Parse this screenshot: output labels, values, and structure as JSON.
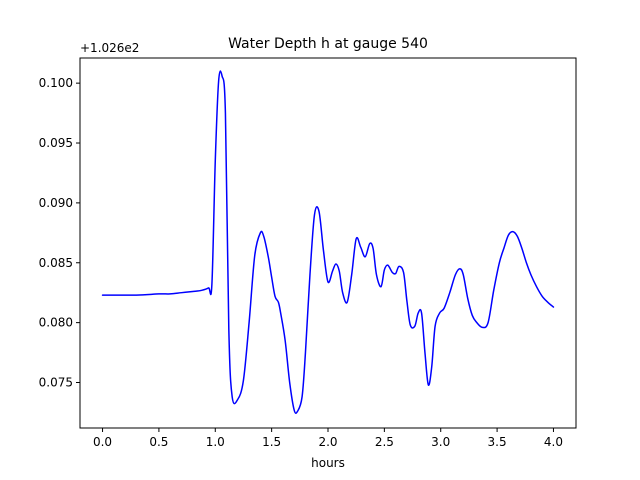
{
  "chart_data": {
    "type": "line",
    "title": "Water Depth h at gauge 540",
    "xlabel": "hours",
    "ylabel": "",
    "y_offset_text": "+1.026e2",
    "xlim": [
      -0.2,
      4.2
    ],
    "ylim": [
      0.0712,
      0.1021
    ],
    "x_ticks": [
      0.0,
      0.5,
      1.0,
      1.5,
      2.0,
      2.5,
      3.0,
      3.5,
      4.0
    ],
    "x_tick_labels": [
      "0.0",
      "0.5",
      "1.0",
      "1.5",
      "2.0",
      "2.5",
      "3.0",
      "3.5",
      "4.0"
    ],
    "y_ticks": [
      0.075,
      0.08,
      0.085,
      0.09,
      0.095,
      0.1
    ],
    "y_tick_labels": [
      "0.075",
      "0.080",
      "0.085",
      "0.090",
      "0.095",
      "0.100"
    ],
    "grid": false,
    "series": [
      {
        "color": "#0000ff",
        "x": [
          0.0,
          0.3,
          0.5,
          0.6,
          0.7,
          0.8,
          0.88,
          0.94,
          0.97,
          1.0,
          1.03,
          1.06,
          1.09,
          1.12,
          1.15,
          1.2,
          1.25,
          1.3,
          1.35,
          1.4,
          1.43,
          1.47,
          1.5,
          1.53,
          1.56,
          1.58,
          1.62,
          1.66,
          1.7,
          1.73,
          1.77,
          1.8,
          1.84,
          1.88,
          1.92,
          1.96,
          2.0,
          2.04,
          2.07,
          2.1,
          2.13,
          2.17,
          2.21,
          2.25,
          2.29,
          2.33,
          2.37,
          2.4,
          2.43,
          2.47,
          2.5,
          2.53,
          2.57,
          2.6,
          2.63,
          2.67,
          2.7,
          2.73,
          2.77,
          2.8,
          2.83,
          2.86,
          2.89,
          2.92,
          2.95,
          2.99,
          3.03,
          3.08,
          3.13,
          3.17,
          3.2,
          3.24,
          3.28,
          3.32,
          3.37,
          3.42,
          3.47,
          3.52,
          3.56,
          3.6,
          3.64,
          3.68,
          3.72,
          3.76,
          3.8,
          3.85,
          3.9,
          3.95,
          4.0
        ],
        "y": [
          0.0823,
          0.0823,
          0.0824,
          0.0824,
          0.0825,
          0.0826,
          0.0827,
          0.0829,
          0.0832,
          0.0935,
          0.1002,
          0.1006,
          0.0975,
          0.0795,
          0.0738,
          0.0736,
          0.0752,
          0.08,
          0.0856,
          0.0875,
          0.0872,
          0.0855,
          0.0838,
          0.0822,
          0.0817,
          0.0808,
          0.0785,
          0.075,
          0.0727,
          0.0726,
          0.0738,
          0.0775,
          0.084,
          0.089,
          0.0893,
          0.086,
          0.0834,
          0.0843,
          0.0849,
          0.0843,
          0.0825,
          0.0817,
          0.084,
          0.087,
          0.0863,
          0.0855,
          0.0866,
          0.0862,
          0.084,
          0.083,
          0.0844,
          0.0848,
          0.0842,
          0.0841,
          0.0847,
          0.0842,
          0.0818,
          0.0798,
          0.0797,
          0.0808,
          0.0808,
          0.0775,
          0.0748,
          0.0763,
          0.0797,
          0.0808,
          0.0812,
          0.0825,
          0.084,
          0.0845,
          0.084,
          0.082,
          0.0806,
          0.08,
          0.0796,
          0.08,
          0.0827,
          0.085,
          0.0862,
          0.0873,
          0.0876,
          0.0872,
          0.0862,
          0.085,
          0.084,
          0.083,
          0.0822,
          0.0817,
          0.0813
        ]
      }
    ]
  }
}
